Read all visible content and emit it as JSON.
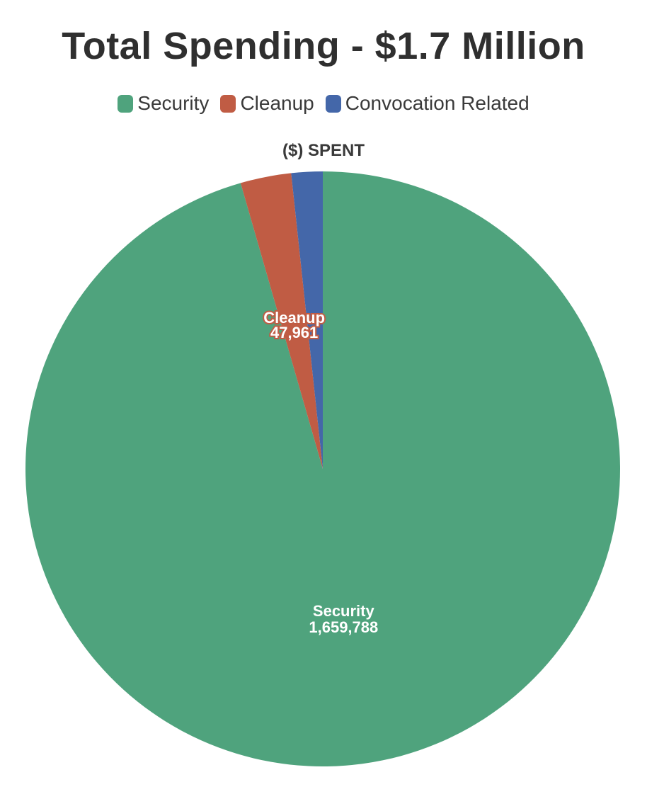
{
  "chart_data": {
    "type": "pie",
    "title": "Total Spending - $1.7 Million",
    "subtitle": "($) SPENT",
    "legend_position": "top",
    "slices": [
      {
        "name": "Security",
        "value": 1659788,
        "value_label": "1,659,788",
        "color": "#4fa37d"
      },
      {
        "name": "Cleanup",
        "value": 47961,
        "value_label": "47,961",
        "color": "#c05c44"
      },
      {
        "name": "Convocation Related",
        "value": 29500,
        "value_label": "",
        "color": "#4467a9"
      }
    ],
    "start_angle_deg": 0,
    "direction": "counterclockwise-from-top"
  }
}
